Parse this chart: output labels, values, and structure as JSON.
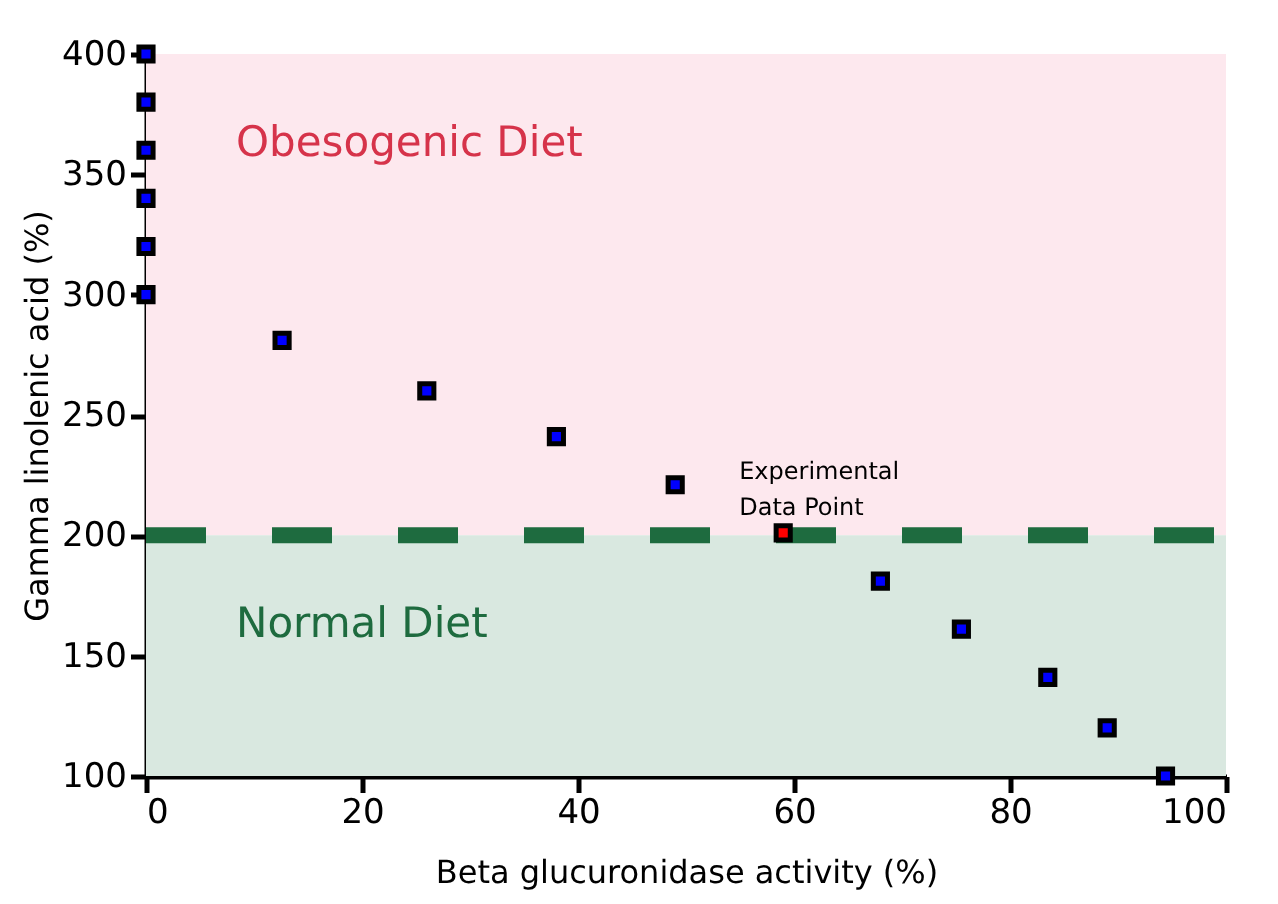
{
  "chart_data": {
    "type": "scatter",
    "xlabel": "Beta glucuronidase activity (%)",
    "ylabel": "Gamma linolenic acid (%)",
    "xlim": [
      0,
      100
    ],
    "xticks": [
      0,
      20,
      40,
      60,
      80,
      100
    ],
    "ylim": [
      100,
      400
    ],
    "yticks": [
      100,
      150,
      200,
      250,
      300,
      350,
      400
    ],
    "grid": false,
    "marker": "square",
    "series": [
      {
        "color": "#0000ff",
        "x": [
          0,
          0,
          0,
          0,
          0,
          0,
          12.6,
          26,
          38,
          49,
          68,
          75.5,
          83.5,
          89,
          94.4
        ],
        "values": [
          400,
          380,
          360,
          340,
          320,
          300,
          281,
          260,
          241,
          221,
          181,
          161,
          141,
          120,
          100
        ]
      },
      {
        "color": "#ff0000",
        "x": [
          59
        ],
        "values": [
          201
        ]
      }
    ],
    "bands": [
      {
        "axis": "y",
        "from": 200,
        "to": 400,
        "label": "Obesogenic Diet",
        "color": "#fde8ee"
      },
      {
        "axis": "y",
        "from": 100,
        "to": 200,
        "label": "Normal Diet",
        "color": "#d9e8e0"
      }
    ],
    "ref_lines": [
      {
        "axis": "y",
        "value": 200,
        "color": "#1e6b3f",
        "line_style": "dashed"
      }
    ],
    "annotations": [
      {
        "text": "Experimental\nData Point",
        "x": 59,
        "y": 201
      }
    ]
  }
}
